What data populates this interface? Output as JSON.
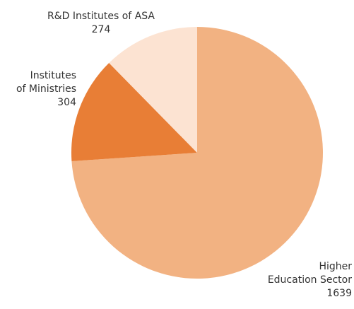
{
  "chart_data": {
    "type": "pie",
    "start_angle_deg": 0,
    "direction": "clockwise",
    "slices": [
      {
        "label_lines": [
          "Higher",
          "Education Sector"
        ],
        "value": 1639,
        "value_label": "1639",
        "color": "#F2B282"
      },
      {
        "label_lines": [
          "Institutes",
          "of Ministries"
        ],
        "value": 304,
        "value_label": "304",
        "color": "#E87E36"
      },
      {
        "label_lines": [
          "R&D Institutes of ASA"
        ],
        "value": 274,
        "value_label": "274",
        "color": "#FCE3D2"
      }
    ]
  }
}
